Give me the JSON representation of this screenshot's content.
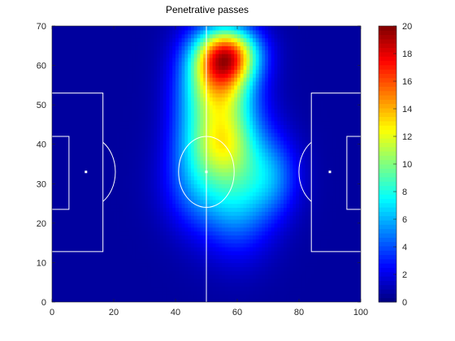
{
  "chart_data": {
    "type": "heatmap",
    "title": "Penetrative passes",
    "xlabel": "",
    "ylabel": "",
    "xlim": [
      0,
      100
    ],
    "ylim": [
      0,
      70
    ],
    "xticks": [
      0,
      20,
      40,
      60,
      80,
      100
    ],
    "yticks": [
      0,
      10,
      20,
      30,
      40,
      50,
      60,
      70
    ],
    "colorbar": {
      "range": [
        0,
        20
      ],
      "ticks": [
        0,
        2,
        4,
        6,
        8,
        10,
        12,
        14,
        16,
        18,
        20
      ],
      "colormap": "jet"
    },
    "hotspots": [
      {
        "x": 57,
        "y": 63,
        "value": 12,
        "sx": 7,
        "sy": 5
      },
      {
        "x": 54,
        "y": 57,
        "value": 8,
        "sx": 7,
        "sy": 7
      },
      {
        "x": 56,
        "y": 48,
        "value": 5,
        "sx": 8,
        "sy": 8
      },
      {
        "x": 55,
        "y": 40,
        "value": 5,
        "sx": 7,
        "sy": 6
      },
      {
        "x": 62,
        "y": 32,
        "value": 4,
        "sx": 8,
        "sy": 9
      },
      {
        "x": 50,
        "y": 30,
        "value": 3.5,
        "sx": 9,
        "sy": 8
      },
      {
        "x": 72,
        "y": 32,
        "value": 3,
        "sx": 6,
        "sy": 7
      },
      {
        "x": 45,
        "y": 45,
        "value": 2.5,
        "sx": 6,
        "sy": 14
      },
      {
        "x": 60,
        "y": 20,
        "value": 2,
        "sx": 8,
        "sy": 8
      }
    ],
    "pitch": {
      "halfway_x": 50,
      "center": [
        50,
        33
      ],
      "center_circle_radius": 9,
      "penalty_spots": [
        [
          11,
          33
        ],
        [
          90,
          33
        ]
      ]
    }
  }
}
